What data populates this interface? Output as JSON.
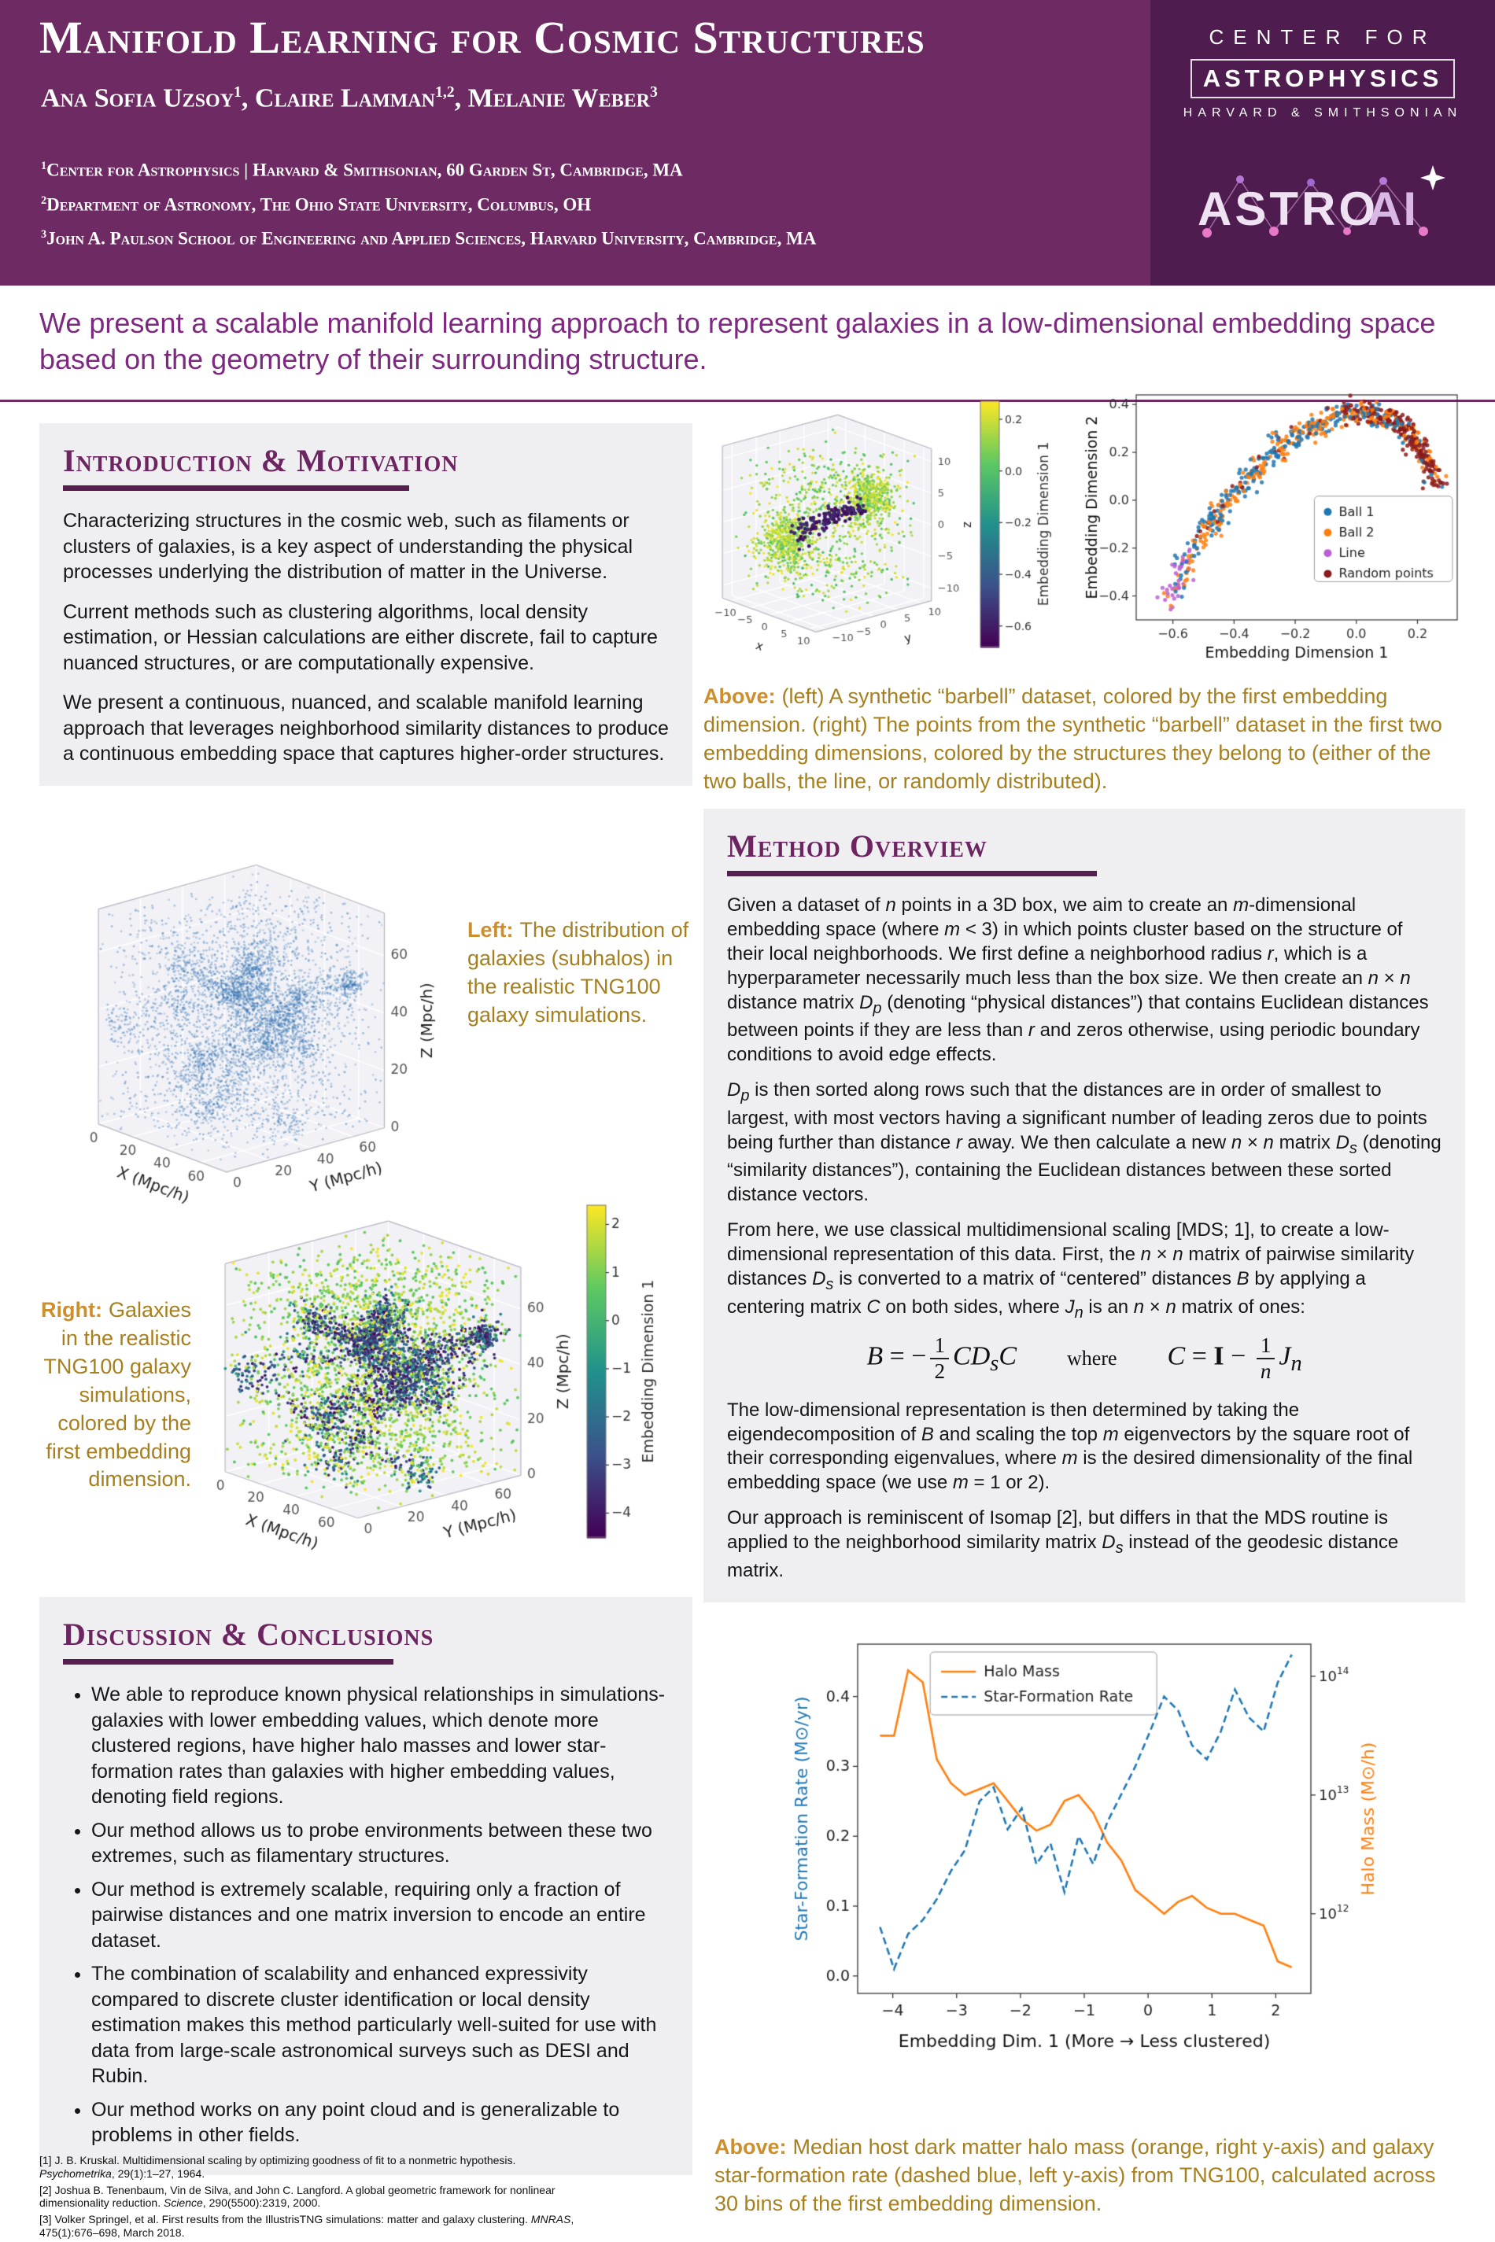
{
  "header": {
    "title": "Manifold Learning for Cosmic Structures",
    "authors_html": "Ana Sofia Uzsoy<sup>1</sup>, Claire Lamman<sup>1,2</sup>, Melanie Weber<sup>3</sup>",
    "affiliations_html": [
      "<sup>1</sup>Center for Astrophysics | Harvard &amp; Smithsonian, 60 Garden St, Cambridge, MA",
      "<sup>2</sup>Department of Astronomy, The Ohio State University, Columbus, OH",
      "<sup>3</sup>John A. Paulson School of Engineering and Applied Sciences, Harvard University, Cambridge, MA"
    ],
    "logo": {
      "line1": "CENTER FOR",
      "line2": "ASTROPHYSICS",
      "line3": "HARVARD & SMITHSONIAN",
      "astroai_part1": "ASTRO",
      "astroai_part2": "AI"
    },
    "colors": {
      "band": "#6e2a63",
      "logo_panel": "#4e1c4e"
    }
  },
  "abstract": "We present a scalable manifold learning approach to represent galaxies in a low-dimensional embedding space based on the geometry of their surrounding structure.",
  "sections": {
    "intro": {
      "title": "Introduction & Motivation",
      "paragraphs": [
        "Characterizing structures in the cosmic web, such as filaments or clusters of galaxies, is a key aspect of understanding the physical processes underlying the distribution of matter in the Universe.",
        "Current methods such as clustering algorithms, local density estimation, or Hessian calculations are either discrete, fail to capture nuanced structures, or are computationally expensive.",
        "We present a continuous, nuanced, and scalable manifold learning approach that leverages neighborhood similarity distances to produce a continuous embedding space that captures higher-order structures."
      ]
    },
    "method": {
      "title": "Method Overview",
      "paragraphs_html": [
        "Given a dataset of <i>n</i> points in a 3D box, we aim to create an <i>m</i>-dimensional embedding space (where <i>m</i> &lt; 3) in which points cluster based on the structure of their local neighborhoods. We first define a neighborhood radius <i>r</i>, which is a hyperparameter necessarily much less than the box size. We then create an <i>n</i> × <i>n</i> distance matrix <i>D<sub>p</sub></i> (denoting “physical distances”) that contains Euclidean distances between points if they are less than <i>r</i> and zeros otherwise, using periodic boundary conditions to avoid edge effects.",
        "<i>D<sub>p</sub></i> is then sorted along rows such that the distances are in order of smallest to largest, with most vectors having a significant number of leading zeros due to points being further than distance <i>r</i> away. We then calculate a new <i>n</i> × <i>n</i> matrix <i>D<sub>s</sub></i> (denoting “similarity distances”), containing the Euclidean distances between these sorted distance vectors.",
        "From here, we use classical multidimensional scaling [MDS; 1], to create a low-dimensional representation of this data. First, the <i>n</i> × <i>n</i> matrix of pairwise similarity distances <i>D<sub>s</sub></i> is converted to a matrix of “centered” distances <i>B</i> by applying a centering matrix <i>C</i> on both sides, where <i>J<sub>n</sub></i> is an <i>n</i> × <i>n</i> matrix of ones:",
        "The low-dimensional representation is then determined by taking the eigendecomposition of <i>B</i> and scaling the top <i>m</i> eigenvectors by the square root of their corresponding eigenvalues, where <i>m</i> is the desired dimensionality of the final embedding space (we use <i>m</i> = 1 or 2).",
        "Our approach is reminiscent of Isomap [2], but differs in that the MDS routine is applied to the neighborhood similarity matrix <i>D<sub>s</sub></i> instead of the geodesic distance matrix."
      ],
      "formula_left_html": "<i>B</i> = −<span class='frac'><span class='top'>1</span><span class='bot'>2</span></span><i>C</i><i>D</i><sub><i>s</i></sub><i>C</i>",
      "formula_where": "where",
      "formula_right_html": "<i>C</i> = <b>I</b> − <span class='frac'><span class='top'>1</span><span class='bot'><i>n</i></span></span><i>J</i><sub><i>n</i></sub>"
    },
    "discussion": {
      "title": "Discussion & Conclusions",
      "bullets": [
        "We able to reproduce known physical relationships in simulations- galaxies with lower embedding values, which denote more clustered regions, have higher halo masses and lower star-formation rates than galaxies with higher embedding values, denoting field regions.",
        "Our method allows us to probe environments between these two extremes, such as filamentary structures.",
        "Our method is extremely scalable, requiring only a fraction of pairwise distances and one matrix inversion to encode an entire dataset.",
        "The combination of scalability and enhanced expressivity compared to discrete cluster identification or local density estimation makes this method particularly well-suited for use with data from large-scale astronomical surveys such as DESI and Rubin.",
        "Our method works on any point cloud and is generalizable to problems in other fields."
      ]
    }
  },
  "captions": {
    "barbell": {
      "label": "Above:",
      "text": "(left) A synthetic “barbell” dataset, colored by the first embedding dimension. (right) The points from the synthetic “barbell” dataset in the first two embedding dimensions, colored by the structures they belong to (either of the two balls, the line, or randomly distributed)."
    },
    "galaxy_left": {
      "label": "Left:",
      "text": "The distribution of galaxies (subhalos) in the realistic TNG100 galaxy simulations."
    },
    "galaxy_right": {
      "label": "Right:",
      "text": "Galaxies in the realistic TNG100 galaxy simulations, colored by the first embedding dimension."
    },
    "haloplot": {
      "label": "Above:",
      "text": "Median host dark matter halo mass (orange, right y-axis) and galaxy star-formation rate (dashed blue, left y-axis) from TNG100, calculated across 30 bins of the first embedding dimension."
    }
  },
  "references_html": [
    "[1] J. B. Kruskal. Multidimensional scaling by optimizing goodness of fit to a nonmetric hypothesis. <i>Psychometrika</i>, 29(1):1–27, 1964.",
    "[2] Joshua B. Tenenbaum, Vin de Silva, and John C. Langford. A global geometric framework for nonlinear dimensionality reduction. <i>Science</i>, 290(5500):2319, 2000.",
    "[3] Volker Springel, et al. First results from the IllustrisTNG simulations: matter and galaxy clustering. <i>MNRAS</i>, 475(1):676–698, March 2018."
  ],
  "chart_data": [
    {
      "id": "barbell-3d",
      "type": "scatter3d",
      "title": "",
      "axes": {
        "x": {
          "label": "x",
          "ticks": [
            -10,
            -5,
            0,
            5,
            10
          ],
          "range": [
            -12,
            12
          ]
        },
        "y": {
          "label": "y",
          "ticks": [
            -10,
            -5,
            0,
            5,
            10
          ],
          "range": [
            -12,
            12
          ]
        },
        "z": {
          "label": "z",
          "ticks": [
            -10,
            -5,
            0,
            5,
            10
          ],
          "range": [
            -12,
            12
          ]
        }
      },
      "colorbar": {
        "label": "Embedding Dimension 1",
        "ticks": [
          0.2,
          0.0,
          -0.2,
          -0.4,
          -0.6
        ],
        "range": [
          -0.68,
          0.27
        ],
        "cmap": "viridis",
        "decimals": 1,
        "tickFont": 14,
        "labelFont": 17
      },
      "style": {
        "tickFont": 13,
        "labelFont": 15,
        "size": 1.7
      },
      "description": "Synthetic barbell dataset: two dense balls of points joined by a line inside a box of random points; ball and random points have embedding values near 0.2 (yellow), line points near -0.6 (dark purple).",
      "generator": {
        "kind": "barbell",
        "seed": 11,
        "n_background": 650,
        "balls": [
          {
            "c": [
              -5.5,
              -4,
              -3
            ],
            "r": 3.6,
            "n": 420
          },
          {
            "c": [
              5,
              5,
              4
            ],
            "r": 3.6,
            "n": 420
          }
        ],
        "line": {
          "from": [
            -4.5,
            -3,
            -2
          ],
          "to": [
            4,
            4,
            3
          ],
          "n": 130
        }
      }
    },
    {
      "id": "embedding-scatter",
      "type": "scatter",
      "xlabel": "Embedding Dimension 1",
      "ylabel": "Embedding Dimension 2",
      "xticks": [
        -0.6,
        -0.4,
        -0.2,
        0.0,
        0.2
      ],
      "yticks": [
        -0.4,
        -0.2,
        0.0,
        0.2,
        0.4
      ],
      "xlim": [
        -0.72,
        0.33
      ],
      "ylim": [
        -0.5,
        0.44
      ],
      "legend": [
        {
          "label": "Ball 1",
          "color": "#1f77b4"
        },
        {
          "label": "Ball 2",
          "color": "#ff7f0e"
        },
        {
          "label": "Line",
          "color": "#bc5fd3"
        },
        {
          "label": "Random points",
          "color": "#8b1a1a"
        }
      ],
      "description": "Barbell dataset points in the first two embedding dimensions: an arc rising from (-0.62,-0.43) to a peak near (0,0.37) then falling; line points (purple) at the lower-left tail, balls (blue/orange) mixed along the arc, random points (dark red) at the upper right end.",
      "generator": {
        "seed": 5,
        "n": 780,
        "jitter": 0.018,
        "arc": [
          [
            -0.62,
            -0.43
          ],
          [
            -0.5,
            -0.14
          ],
          [
            -0.38,
            0.06
          ],
          [
            -0.26,
            0.21
          ],
          [
            -0.14,
            0.31
          ],
          [
            -0.02,
            0.37
          ],
          [
            0.08,
            0.36
          ],
          [
            0.16,
            0.3
          ],
          [
            0.22,
            0.2
          ],
          [
            0.27,
            0.05
          ]
        ]
      }
    },
    {
      "id": "tng-galaxies-3d",
      "type": "scatter3d",
      "axes": {
        "x": {
          "label": "X (Mpc/h)",
          "ticks": [
            0,
            20,
            40,
            60
          ],
          "range": [
            0,
            75
          ]
        },
        "y": {
          "label": "Y (Mpc/h)",
          "ticks": [
            0,
            20,
            40,
            60
          ],
          "range": [
            0,
            75
          ]
        },
        "z": {
          "label": "Z (Mpc/h)",
          "ticks": [
            0,
            20,
            40,
            60
          ],
          "range": [
            0,
            75
          ]
        }
      },
      "style": {
        "tickFont": 17,
        "labelFont": 20,
        "size": 1.4,
        "mono": "#2e6fb0",
        "alpha": 0.45
      },
      "description": "Distribution of galaxies (subhalos) in the TNG100 simulation box, showing clustered filamentary structure.",
      "generator": {
        "kind": "galaxy",
        "seed": 3,
        "n_nodes": 20,
        "n_edges": 26,
        "n_points": 5200,
        "f_seg": 0.34,
        "f_node": 0.22
      }
    },
    {
      "id": "tng-galaxies-embedding-3d",
      "type": "scatter3d",
      "axes": {
        "x": {
          "label": "X (Mpc/h)",
          "ticks": [
            0,
            20,
            40,
            60
          ],
          "range": [
            0,
            75
          ]
        },
        "y": {
          "label": "Y (Mpc/h)",
          "ticks": [
            0,
            20,
            40,
            60
          ],
          "range": [
            0,
            75
          ]
        },
        "z": {
          "label": "Z (Mpc/h)",
          "ticks": [
            0,
            20,
            40,
            60
          ],
          "range": [
            0,
            75
          ]
        }
      },
      "colorbar": {
        "label": "Embedding Dimension 1",
        "ticks": [
          2,
          1,
          0,
          -1,
          -2,
          -3,
          -4
        ],
        "range": [
          -4.5,
          2.4
        ],
        "cmap": "viridis",
        "decimals": 0,
        "tickFont": 17,
        "labelFont": 19
      },
      "style": {
        "tickFont": 17,
        "labelFont": 20,
        "size": 1.9,
        "viridisByKind": true
      },
      "description": "Same galaxies colored by the first embedding dimension: clustered regions dark purple (low values), field regions yellow (high values).",
      "generator": {
        "kind": "galaxy",
        "seed": 3,
        "n_nodes": 20,
        "n_edges": 26,
        "n_points": 4300,
        "f_seg": 0.32,
        "f_node": 0.2
      }
    },
    {
      "id": "halo-sfr",
      "type": "line",
      "xlabel": "Embedding Dim. 1 (More → Less clustered)",
      "ylabel_left": "Star-Formation Rate (M⊙/yr)",
      "ylabel_right": "Halo Mass (M⊙/h)",
      "xlim": [
        -4.55,
        2.55
      ],
      "ylim": [
        -0.025,
        0.475
      ],
      "xticks": [
        -4,
        -3,
        -2,
        -1,
        0,
        1,
        2
      ],
      "yticks_left": [
        0.0,
        0.1,
        0.2,
        0.3,
        0.4
      ],
      "right_axis": {
        "tick_exponents": [
          12,
          13,
          14
        ],
        "log_base": 11.3,
        "left_at_base": -0.03,
        "left_per_dex": 0.17
      },
      "x": [
        -4.2,
        -3.98,
        -3.76,
        -3.53,
        -3.31,
        -3.09,
        -2.87,
        -2.64,
        -2.42,
        -2.2,
        -1.98,
        -1.75,
        -1.53,
        -1.31,
        -1.09,
        -0.86,
        -0.64,
        -0.42,
        -0.2,
        0.03,
        0.25,
        0.47,
        0.69,
        0.92,
        1.14,
        1.36,
        1.58,
        1.81,
        2.03,
        2.25
      ],
      "series": [
        {
          "name": "Halo Mass",
          "color": "#ff7f0e",
          "style": "solid",
          "axis": "right",
          "log10_values": [
            13.5,
            13.5,
            14.05,
            13.95,
            13.3,
            13.1,
            13.0,
            13.05,
            13.1,
            12.95,
            12.8,
            12.7,
            12.75,
            12.95,
            13.0,
            12.85,
            12.6,
            12.45,
            12.2,
            12.1,
            12.0,
            12.1,
            12.15,
            12.05,
            12.0,
            12.0,
            11.95,
            11.9,
            11.6,
            11.55
          ]
        },
        {
          "name": "Star-Formation Rate",
          "color": "#1f77b4",
          "style": "dashed",
          "axis": "left",
          "values": [
            0.07,
            0.01,
            0.06,
            0.08,
            0.11,
            0.15,
            0.18,
            0.25,
            0.27,
            0.21,
            0.24,
            0.16,
            0.19,
            0.12,
            0.2,
            0.16,
            0.22,
            0.26,
            0.3,
            0.35,
            0.4,
            0.38,
            0.33,
            0.31,
            0.35,
            0.41,
            0.37,
            0.35,
            0.42,
            0.46
          ]
        }
      ],
      "legend_position": "top-center"
    }
  ]
}
